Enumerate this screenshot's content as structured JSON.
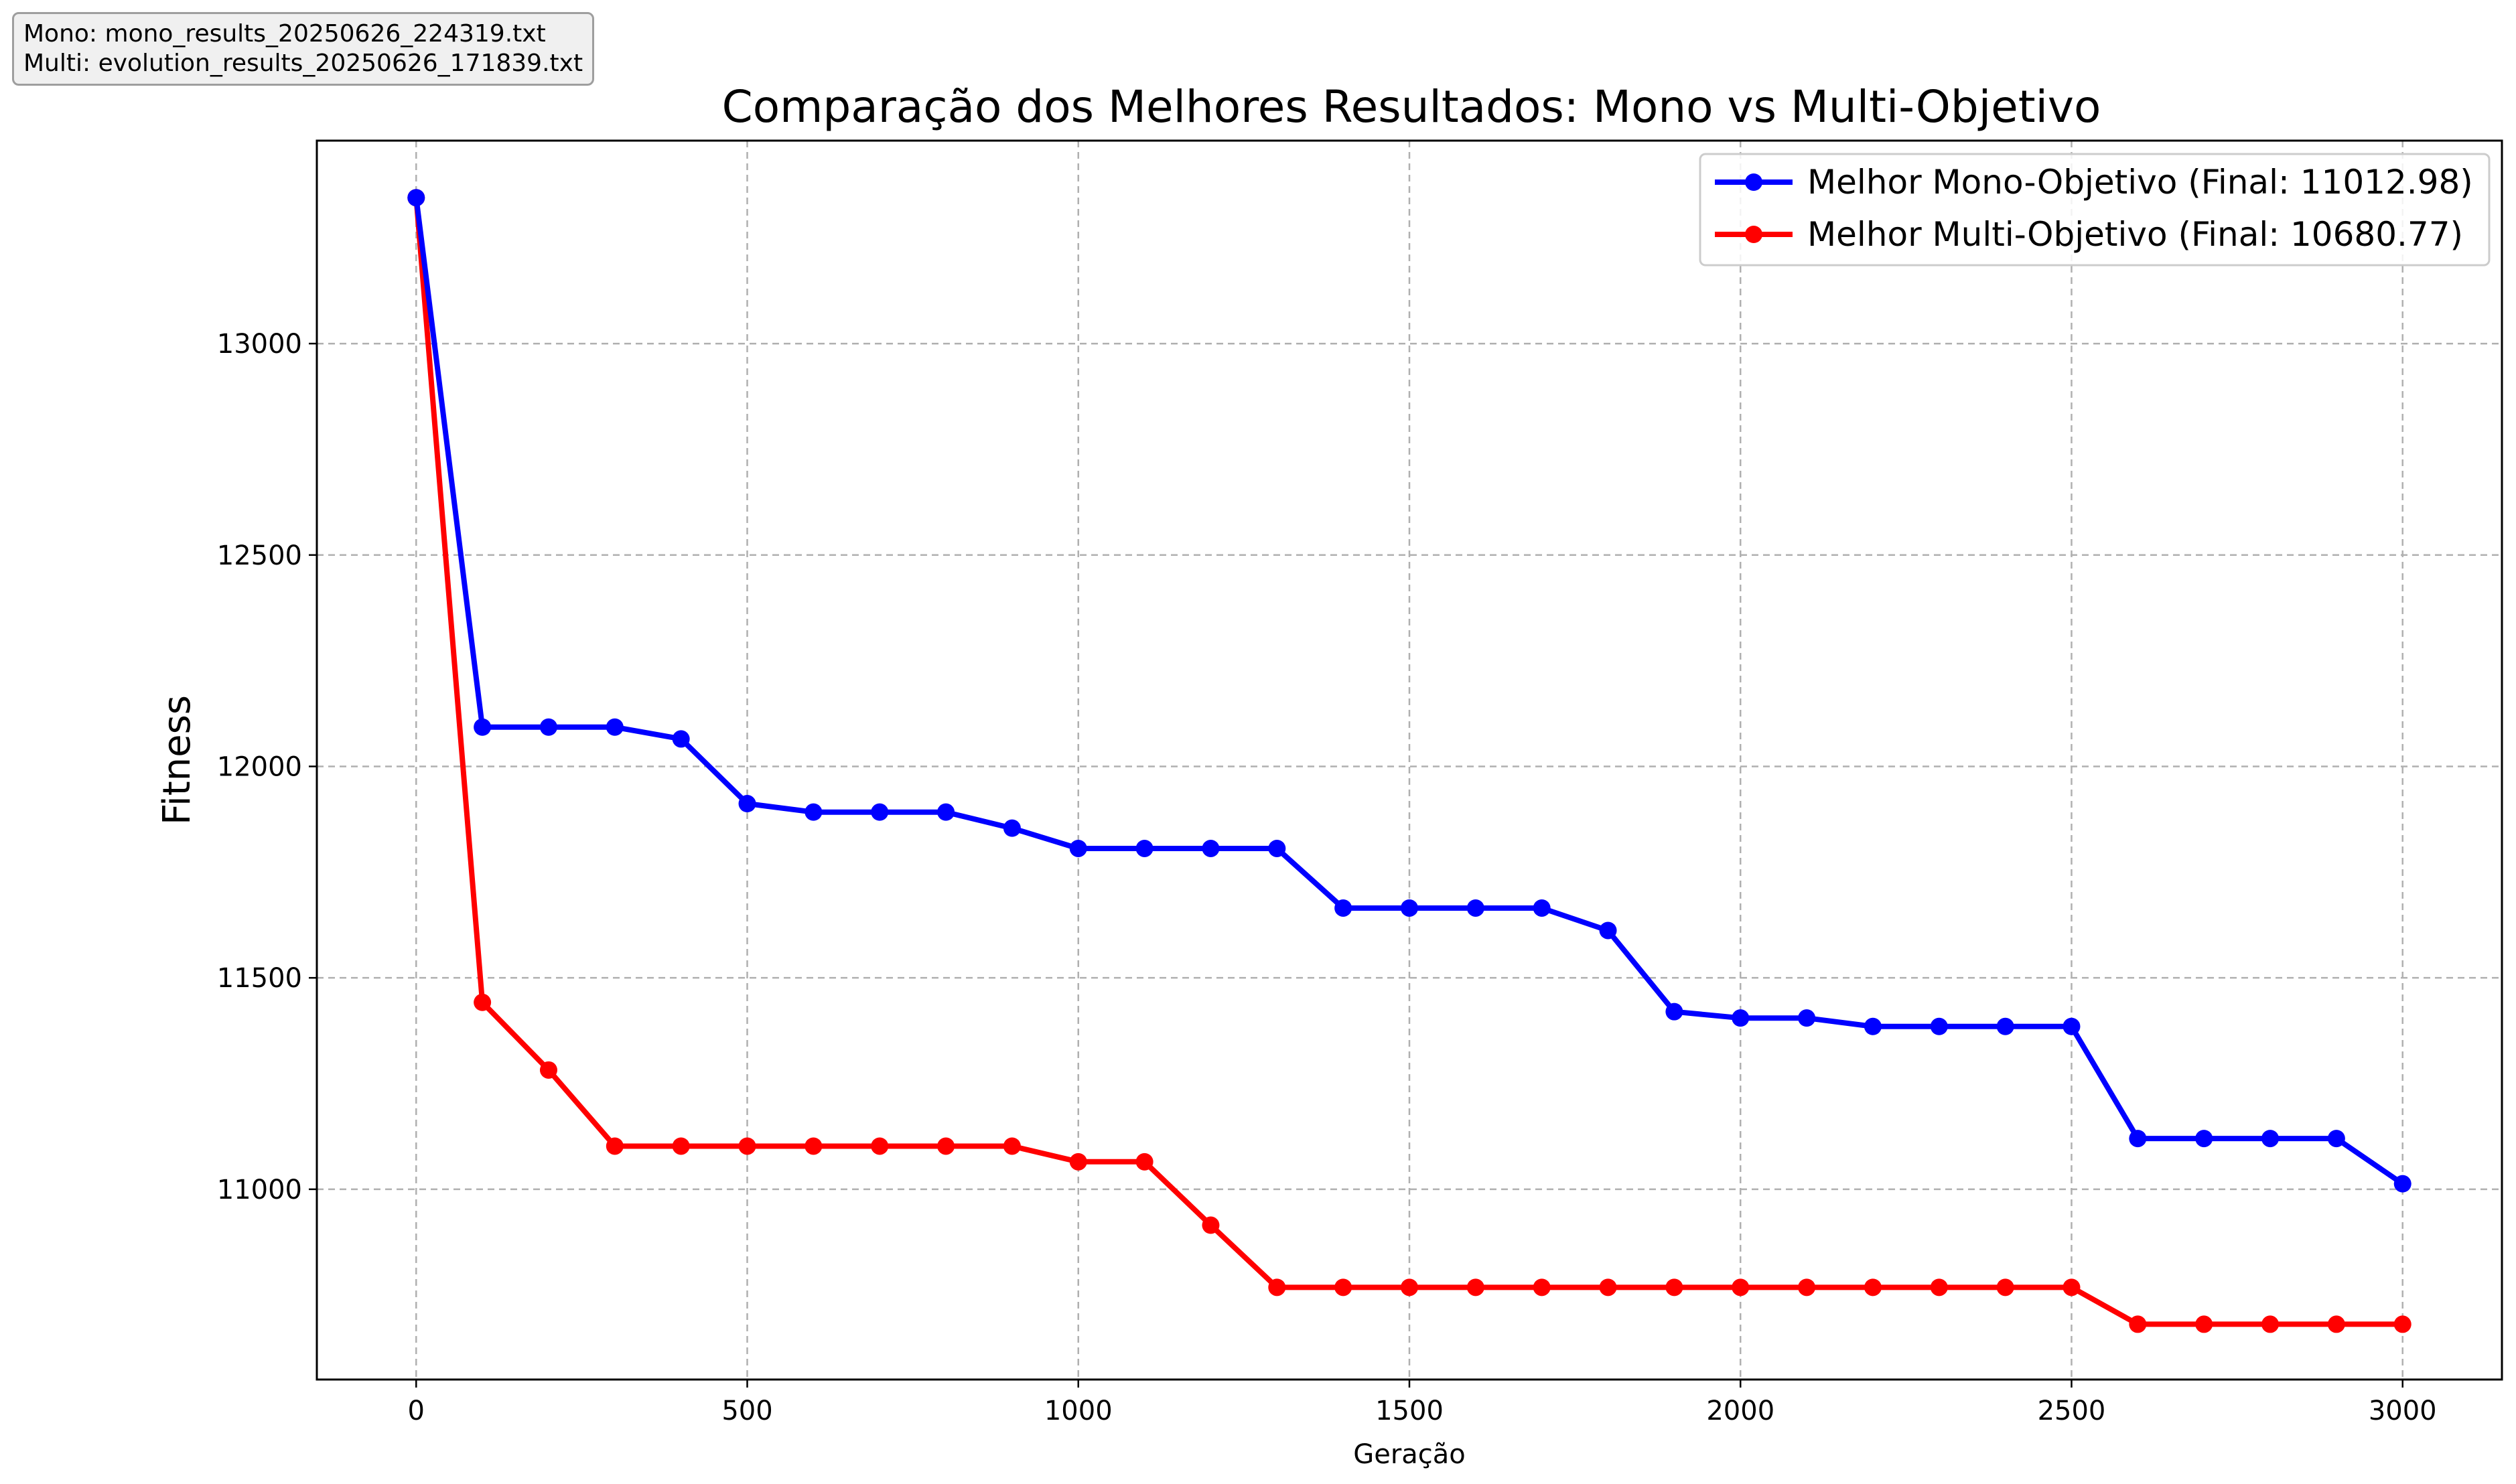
{
  "file_info": {
    "mono_line": "Mono: mono_results_20250626_224319.txt",
    "multi_line": "Multi: evolution_results_20250626_171839.txt"
  },
  "chart_data": {
    "type": "line",
    "title": "Comparação dos Melhores Resultados: Mono vs Multi-Objetivo",
    "xlabel": "Geração",
    "ylabel": "Fitness",
    "xlim": [
      -150,
      3150
    ],
    "ylim": [
      10550,
      13480
    ],
    "x_ticks": [
      0,
      500,
      1000,
      1500,
      2000,
      2500,
      3000
    ],
    "y_ticks": [
      11000,
      11500,
      12000,
      12500,
      13000
    ],
    "grid": true,
    "legend_position": "top-right",
    "x": [
      0,
      100,
      200,
      300,
      400,
      500,
      600,
      700,
      800,
      900,
      1000,
      1100,
      1200,
      1300,
      1400,
      1500,
      1600,
      1700,
      1800,
      1900,
      2000,
      2100,
      2200,
      2300,
      2400,
      2500,
      2600,
      2700,
      2800,
      2900,
      3000
    ],
    "series": [
      {
        "name": "Melhor Mono-Objetivo (Final: 11012.98)",
        "color": "#0000ff",
        "values": [
          13345,
          12093,
          12093,
          12093,
          12065,
          11912,
          11892,
          11892,
          11892,
          11854,
          11806,
          11806,
          11806,
          11806,
          11665,
          11665,
          11665,
          11665,
          11612,
          11420,
          11405,
          11405,
          11385,
          11385,
          11385,
          11385,
          11120,
          11120,
          11120,
          11120,
          11012.98
        ]
      },
      {
        "name": "Melhor Multi-Objetivo (Final: 10680.77)",
        "color": "#ff0000",
        "values": [
          13345,
          11442,
          11282,
          11102,
          11102,
          11102,
          11102,
          11102,
          11102,
          11102,
          11065,
          11065,
          10915,
          10768,
          10768,
          10768,
          10768,
          10768,
          10768,
          10768,
          10768,
          10768,
          10768,
          10768,
          10768,
          10768,
          10680.77,
          10680.77,
          10680.77,
          10680.77,
          10680.77
        ]
      }
    ]
  }
}
